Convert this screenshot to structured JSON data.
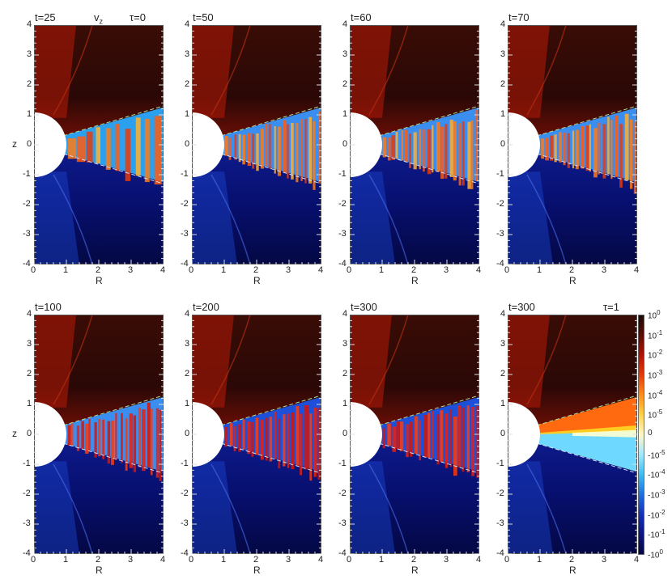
{
  "chart_data": {
    "type": "heatmap",
    "quantity_label": "v",
    "quantity_subscript": "z",
    "xlabel": "R",
    "ylabel": "z",
    "xlim": [
      0,
      4
    ],
    "ylim": [
      -4,
      4
    ],
    "x_ticks": [
      "0",
      "1",
      "2",
      "3",
      "4"
    ],
    "y_ticks": [
      "4",
      "3",
      "2",
      "1",
      "0",
      "-1",
      "-2",
      "-3",
      "-4"
    ],
    "panels": [
      {
        "time_label": "t=25",
        "tau_label": "τ=0",
        "mode": "early"
      },
      {
        "time_label": "t=50",
        "tau_label": "",
        "mode": "turb"
      },
      {
        "time_label": "t=60",
        "tau_label": "",
        "mode": "turb"
      },
      {
        "time_label": "t=70",
        "tau_label": "",
        "mode": "turb"
      },
      {
        "time_label": "t=100",
        "tau_label": "",
        "mode": "bands"
      },
      {
        "time_label": "t=200",
        "tau_label": "",
        "mode": "bands-blue"
      },
      {
        "time_label": "t=300",
        "tau_label": "",
        "mode": "bands-blue"
      },
      {
        "time_label": "t=300",
        "tau_label": "τ=1",
        "mode": "laminar"
      }
    ],
    "colorbar": {
      "scale": "symlog",
      "ticks": [
        {
          "base": "10",
          "exp": "0"
        },
        {
          "base": "10",
          "exp": "-1"
        },
        {
          "base": "10",
          "exp": "-2"
        },
        {
          "base": "10",
          "exp": "-3"
        },
        {
          "base": "10",
          "exp": "-4"
        },
        {
          "base": "10",
          "exp": "-5"
        },
        {
          "base": "0",
          "exp": ""
        },
        {
          "base": "-10",
          "exp": "-5"
        },
        {
          "base": "-10",
          "exp": "-4"
        },
        {
          "base": "-10",
          "exp": "-3"
        },
        {
          "base": "-10",
          "exp": "-2"
        },
        {
          "base": "-10",
          "exp": "-1"
        },
        {
          "base": "-10",
          "exp": "0"
        }
      ],
      "colors": [
        "#1a0a08",
        "#5a0d05",
        "#b01205",
        "#e43a0b",
        "#ff8c1a",
        "#ffd24a",
        "#fff8c8",
        "#9fe9ff",
        "#3bbcf2",
        "#1f6fe0",
        "#1530b8",
        "#0c1480",
        "#05083e"
      ]
    }
  }
}
